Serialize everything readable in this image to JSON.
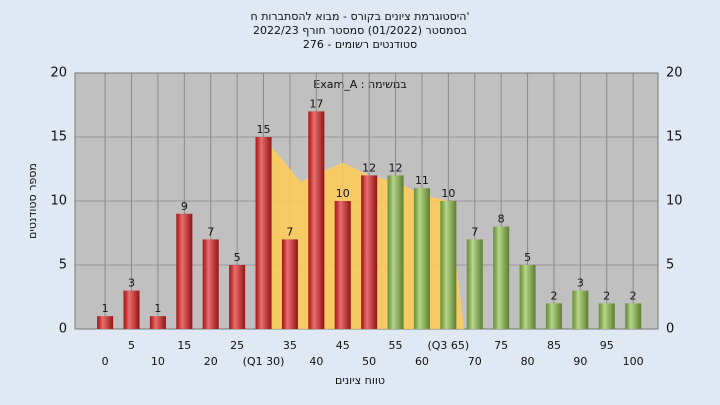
{
  "chart_data": {
    "type": "bar",
    "title": [
      "'היסטוגרמת ציונים בקורס - מבוא להסתברות ח",
      "בסמסטר (01/2022) סמסטר חורף 2022/23",
      "סטודנטים רשומים - 276"
    ],
    "subtitle": "במשימה : Exam_A",
    "x_label": "טווח ציונים",
    "y_label": "מספר סטודנטים",
    "x": [
      0,
      5,
      10,
      15,
      20,
      25,
      30,
      35,
      40,
      45,
      50,
      55,
      60,
      65,
      70,
      75,
      80,
      85,
      90,
      95,
      100
    ],
    "values": [
      1,
      3,
      1,
      9,
      7,
      5,
      15,
      7,
      17,
      10,
      12,
      12,
      11,
      10,
      7,
      8,
      5,
      2,
      3,
      2,
      2
    ],
    "colors": [
      "#e02020",
      "#e02020",
      "#e02020",
      "#e02020",
      "#e02020",
      "#e02020",
      "#e02020",
      "#e02020",
      "#e02020",
      "#e02020",
      "#e02020",
      "#8fc04a",
      "#8fc04a",
      "#8fc04a",
      "#8fc04a",
      "#8fc04a",
      "#8fc04a",
      "#8fc04a",
      "#8fc04a",
      "#8fc04a",
      "#8fc04a"
    ],
    "area": {
      "color": "#ffcc55",
      "x": [
        30,
        37,
        45,
        50,
        55,
        60,
        65,
        68
      ],
      "values": [
        15,
        11.5,
        13,
        12,
        11.5,
        10.5,
        10,
        0
      ]
    },
    "xlim": [
      -5.7,
      104.7
    ],
    "ylim": [
      0,
      20
    ],
    "xticks": [
      0,
      5,
      10,
      15,
      20,
      25,
      {
        "value": 30,
        "label": "(Q1 30)"
      },
      35,
      40,
      45,
      50,
      55,
      60,
      {
        "value": 65,
        "label": "(Q3 65)"
      },
      70,
      75,
      80,
      85,
      90,
      95,
      100
    ],
    "yticks": [
      0,
      5,
      10,
      15,
      20
    ],
    "grid": true
  }
}
